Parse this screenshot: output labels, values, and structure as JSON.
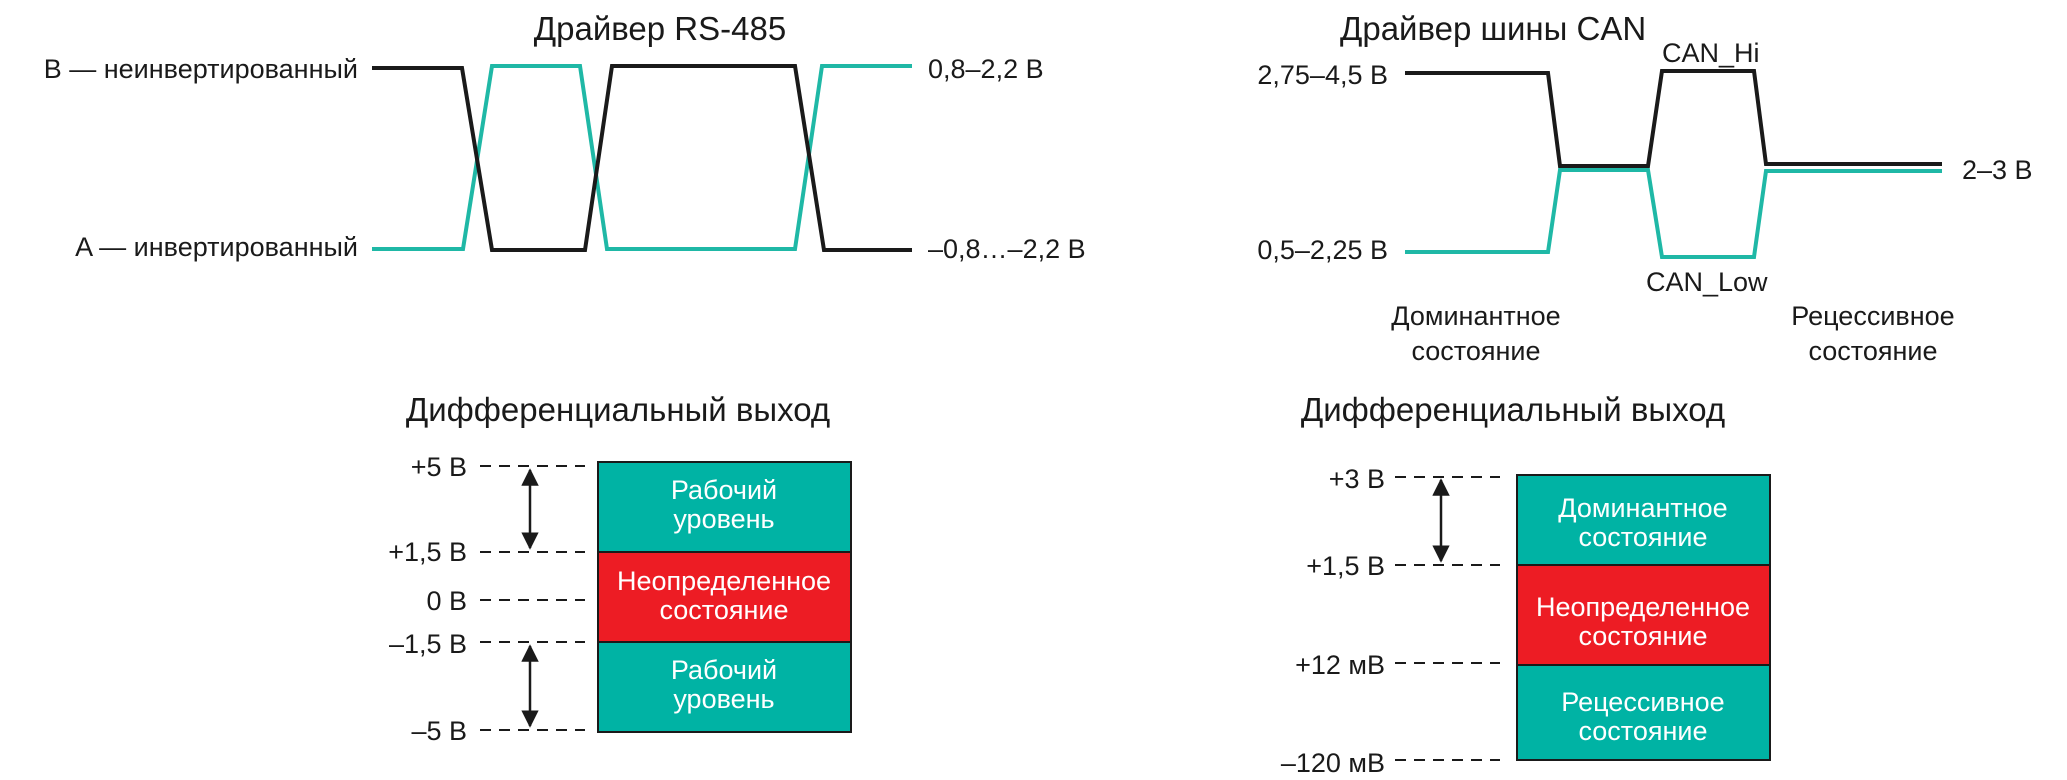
{
  "colors": {
    "black_line": "#1a1a1a",
    "teal_line": "#1fb8a6",
    "teal_box": "#00b3a4",
    "red_box": "#ed1c24",
    "box_text": "#ffffff"
  },
  "rs485": {
    "title": "Драйвер RS-485",
    "line_b_label": "B — неинвертированный",
    "line_a_label": "A — инвертированный",
    "high_level": "0,8–2,2 В",
    "low_level": "–0,8…–2,2 В"
  },
  "can": {
    "title": "Драйвер шины CAN",
    "high_level": "2,75–4,5 В",
    "low_level": "0,5–2,25 В",
    "recessive_level": "2–3 В",
    "can_hi": "CAN_Hi",
    "can_low": "CAN_Low",
    "dominant_state": [
      "Доминантное",
      "состояние"
    ],
    "recessive_state": [
      "Рецессивное",
      "состояние"
    ]
  },
  "rs485_diff": {
    "title": "Дифференциальный выход",
    "levels": [
      "+5 В",
      "+1,5 В",
      "0 В",
      "–1,5 В",
      "–5 В"
    ],
    "boxes": [
      {
        "lines": [
          "Рабочий",
          "уровень"
        ],
        "color": "#00b3a4"
      },
      {
        "lines": [
          "Неопределенное",
          "состояние"
        ],
        "color": "#ed1c24"
      },
      {
        "lines": [
          "Рабочий",
          "уровень"
        ],
        "color": "#00b3a4"
      }
    ]
  },
  "can_diff": {
    "title": "Дифференциальный выход",
    "levels": [
      "+3 В",
      "+1,5 В",
      "+12 мВ",
      "–120 мВ"
    ],
    "boxes": [
      {
        "lines": [
          "Доминантное",
          "состояние"
        ],
        "color": "#00b3a4"
      },
      {
        "lines": [
          "Неопределенное",
          "состояние"
        ],
        "color": "#ed1c24"
      },
      {
        "lines": [
          "Рецессивное",
          "состояние"
        ],
        "color": "#00b3a4"
      }
    ]
  }
}
